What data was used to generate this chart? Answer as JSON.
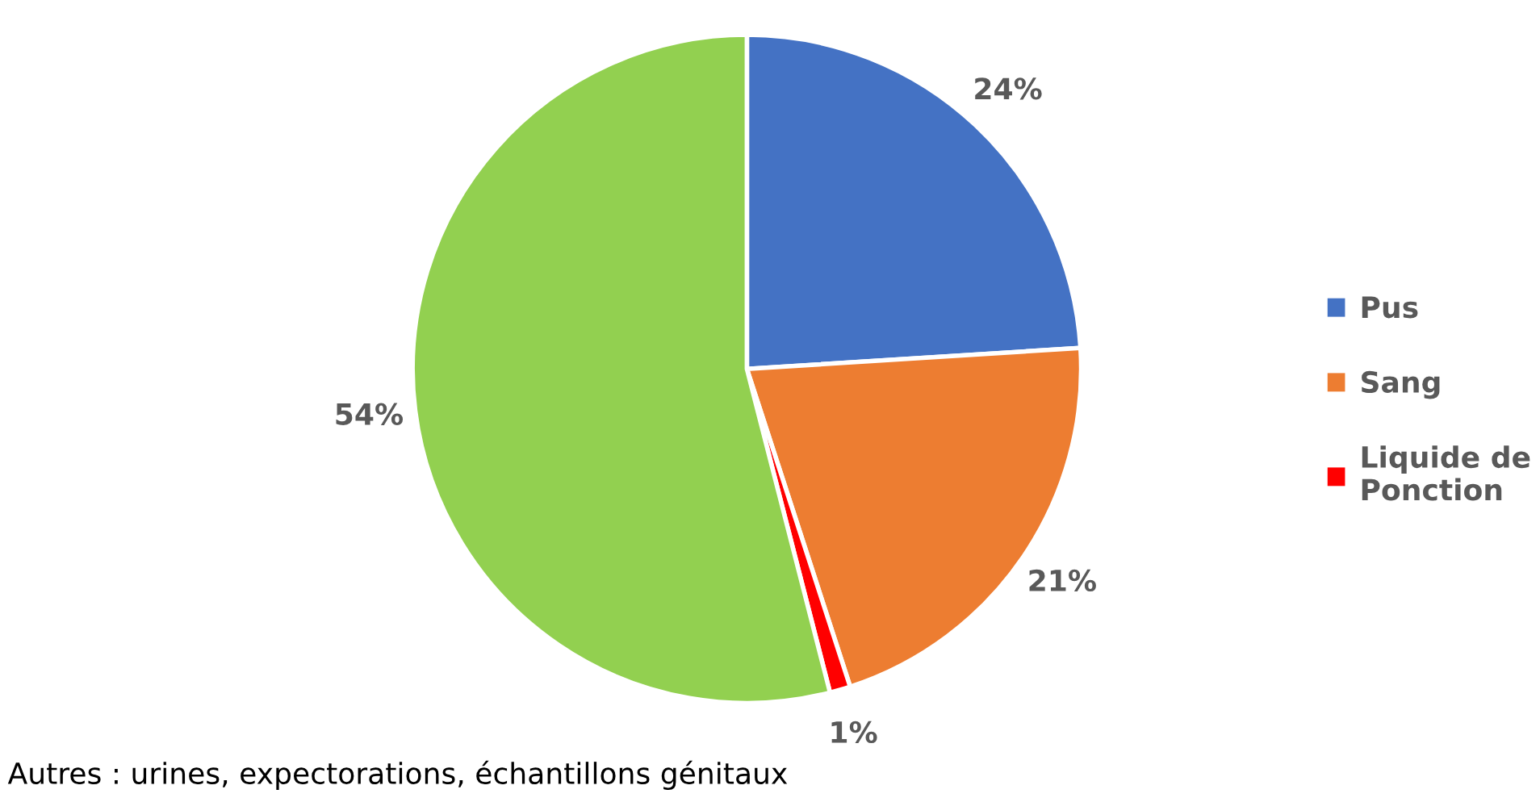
{
  "chart_data": {
    "type": "pie",
    "categories": [
      "Pus",
      "Sang",
      "Liquide de Ponction",
      null
    ],
    "values": [
      24,
      21,
      1,
      54
    ],
    "colors": [
      "#4472c4",
      "#ed7d31",
      "#ff0000",
      "#92d050"
    ],
    "value_labels": [
      "24%",
      "21%",
      "1%",
      "54%"
    ],
    "legend": "right",
    "annotations": [
      "Autres : urines, expectorations, échantillons génitaux"
    ]
  }
}
